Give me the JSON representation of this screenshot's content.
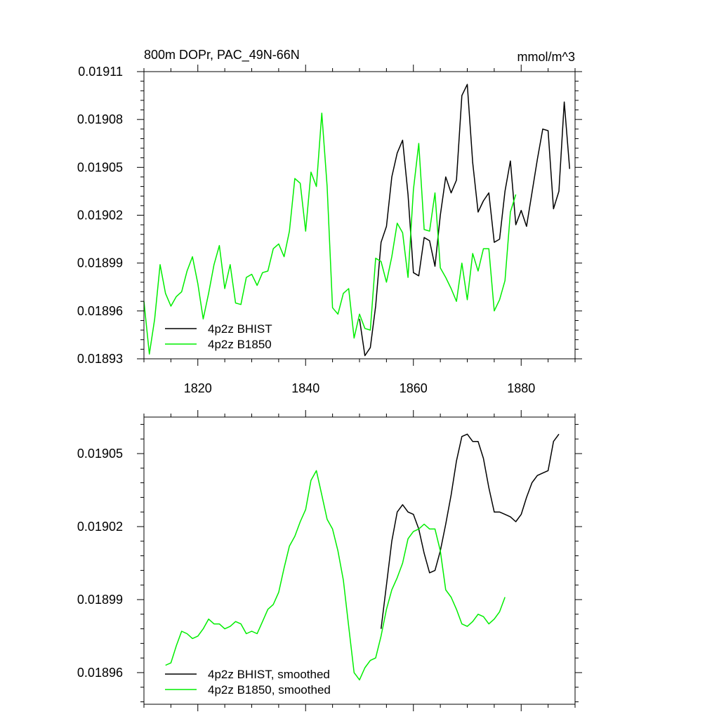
{
  "colors": {
    "bhist": "#000000",
    "b1850": "#00ee00",
    "axis": "#000000",
    "background": "#ffffff"
  },
  "chart_data": [
    {
      "type": "line",
      "title": "800m DOPr, PAC_49N-66N",
      "units": "mmol/m^3",
      "xlabel": "",
      "ylabel": "",
      "xlim": [
        1810,
        1890
      ],
      "ylim": [
        0.01893,
        0.01911
      ],
      "xticks": [
        1820,
        1840,
        1860,
        1880
      ],
      "xtick_labels": [
        "1820",
        "1840",
        "1860",
        "1880"
      ],
      "yticks": [
        0.01893,
        0.01896,
        0.01899,
        0.01902,
        0.01905,
        0.01908,
        0.01911
      ],
      "ytick_labels": [
        "0.01893",
        "0.01896",
        "0.01899",
        "0.01902",
        "0.01905",
        "0.01908",
        "0.01911"
      ],
      "grid": false,
      "legend_position": "bottom-left",
      "series": [
        {
          "name": "4p2z BHIST",
          "color": "#000000",
          "x": [
            1850,
            1851,
            1852,
            1853,
            1854,
            1855,
            1856,
            1857,
            1858,
            1859,
            1860,
            1861,
            1862,
            1863,
            1864,
            1865,
            1866,
            1867,
            1868,
            1869,
            1870,
            1871,
            1872,
            1873,
            1874,
            1875,
            1876,
            1877,
            1878,
            1879,
            1880,
            1881,
            1882,
            1883,
            1884,
            1885,
            1886,
            1887,
            1888,
            1889
          ],
          "y": [
            0.018955,
            0.018932,
            0.018937,
            0.018963,
            0.019003,
            0.019013,
            0.019044,
            0.019059,
            0.019067,
            0.019033,
            0.018984,
            0.018982,
            0.019006,
            0.019004,
            0.018988,
            0.01902,
            0.019044,
            0.019034,
            0.019042,
            0.019095,
            0.019102,
            0.019053,
            0.019022,
            0.019029,
            0.019034,
            0.019003,
            0.019005,
            0.019035,
            0.019054,
            0.019014,
            0.019023,
            0.019013,
            0.019034,
            0.019055,
            0.019074,
            0.019073,
            0.019024,
            0.019035,
            0.019091,
            0.019049
          ]
        },
        {
          "name": "4p2z B1850",
          "color": "#00ee00",
          "x": [
            1810,
            1811,
            1812,
            1813,
            1814,
            1815,
            1816,
            1817,
            1818,
            1819,
            1820,
            1821,
            1822,
            1823,
            1824,
            1825,
            1826,
            1827,
            1828,
            1829,
            1830,
            1831,
            1832,
            1833,
            1834,
            1835,
            1836,
            1837,
            1838,
            1839,
            1840,
            1841,
            1842,
            1843,
            1844,
            1845,
            1846,
            1847,
            1848,
            1849,
            1850,
            1851,
            1852,
            1853,
            1854,
            1855,
            1856,
            1857,
            1858,
            1859,
            1860,
            1861,
            1862,
            1863,
            1864,
            1865,
            1866,
            1867,
            1868,
            1869,
            1870,
            1871,
            1872,
            1873,
            1874,
            1875,
            1876,
            1877,
            1878,
            1879
          ],
          "y": [
            0.018966,
            0.018933,
            0.018955,
            0.018989,
            0.018971,
            0.018963,
            0.018969,
            0.018972,
            0.018985,
            0.018994,
            0.018977,
            0.018955,
            0.018971,
            0.018989,
            0.019001,
            0.018974,
            0.018989,
            0.018965,
            0.018964,
            0.018981,
            0.018983,
            0.018976,
            0.018984,
            0.018985,
            0.018999,
            0.019002,
            0.018994,
            0.01901,
            0.019043,
            0.01904,
            0.01901,
            0.019047,
            0.019038,
            0.019084,
            0.019038,
            0.018962,
            0.018958,
            0.018971,
            0.018974,
            0.018943,
            0.018958,
            0.018949,
            0.018948,
            0.018993,
            0.018991,
            0.018978,
            0.018994,
            0.019015,
            0.019009,
            0.018981,
            0.019036,
            0.019065,
            0.019011,
            0.01901,
            0.019034,
            0.018987,
            0.018981,
            0.018974,
            0.018966,
            0.01899,
            0.018967,
            0.018996,
            0.018985,
            0.018999,
            0.018999,
            0.01896,
            0.018967,
            0.018979,
            0.019022,
            0.019033
          ]
        }
      ]
    },
    {
      "type": "line",
      "title": "",
      "xlabel": "",
      "ylabel": "",
      "xlim": [
        1810,
        1890
      ],
      "ylim": [
        0.018947,
        0.019065
      ],
      "xticks": [
        1820,
        1840,
        1860,
        1880
      ],
      "yticks": [
        0.01896,
        0.01899,
        0.01902,
        0.01905
      ],
      "ytick_labels": [
        "0.01896",
        "0.01899",
        "0.01902",
        "0.01905"
      ],
      "grid": false,
      "legend_position": "bottom-left",
      "series": [
        {
          "name": "4p2z BHIST, smoothed",
          "color": "#000000",
          "x": [
            1854,
            1855,
            1856,
            1857,
            1858,
            1859,
            1860,
            1861,
            1862,
            1863,
            1864,
            1865,
            1866,
            1867,
            1868,
            1869,
            1870,
            1871,
            1872,
            1873,
            1874,
            1875,
            1876,
            1877,
            1878,
            1879,
            1880,
            1881,
            1882,
            1883,
            1884,
            1885,
            1886,
            1887
          ],
          "y": [
            0.018978,
            0.018996,
            0.019014,
            0.019026,
            0.019029,
            0.019026,
            0.019025,
            0.019019,
            0.019009,
            0.019001,
            0.019002,
            0.01901,
            0.019021,
            0.019033,
            0.019047,
            0.019057,
            0.019058,
            0.019055,
            0.019055,
            0.019048,
            0.019036,
            0.019026,
            0.019026,
            0.019025,
            0.019024,
            0.019022,
            0.019025,
            0.019032,
            0.019038,
            0.019041,
            0.019042,
            0.019043,
            0.019055,
            0.019058
          ]
        },
        {
          "name": "4p2z B1850, smoothed",
          "color": "#00ee00",
          "x": [
            1814,
            1815,
            1816,
            1817,
            1818,
            1819,
            1820,
            1821,
            1822,
            1823,
            1824,
            1825,
            1826,
            1827,
            1828,
            1829,
            1830,
            1831,
            1832,
            1833,
            1834,
            1835,
            1836,
            1837,
            1838,
            1839,
            1840,
            1841,
            1842,
            1843,
            1844,
            1845,
            1846,
            1847,
            1848,
            1849,
            1850,
            1851,
            1852,
            1853,
            1854,
            1855,
            1856,
            1857,
            1858,
            1859,
            1860,
            1861,
            1862,
            1863,
            1864,
            1865,
            1866,
            1867,
            1868,
            1869,
            1870,
            1871,
            1872,
            1873,
            1874,
            1875,
            1876,
            1877
          ],
          "y": [
            0.018963,
            0.018964,
            0.018971,
            0.018977,
            0.018976,
            0.018974,
            0.018975,
            0.018978,
            0.018982,
            0.01898,
            0.01898,
            0.018978,
            0.018979,
            0.018981,
            0.01898,
            0.018976,
            0.018977,
            0.018976,
            0.018981,
            0.018986,
            0.018988,
            0.018993,
            0.019003,
            0.019012,
            0.019016,
            0.019022,
            0.019027,
            0.019039,
            0.019043,
            0.019033,
            0.019023,
            0.019019,
            0.01901,
            0.018998,
            0.018979,
            0.01896,
            0.018957,
            0.018962,
            0.018965,
            0.018966,
            0.018975,
            0.018986,
            0.018994,
            0.018999,
            0.019005,
            0.019015,
            0.019018,
            0.019019,
            0.019021,
            0.019019,
            0.019019,
            0.01901,
            0.018994,
            0.018991,
            0.018986,
            0.01898,
            0.018979,
            0.018981,
            0.018984,
            0.018983,
            0.01898,
            0.018982,
            0.018985,
            0.018991
          ]
        }
      ]
    }
  ]
}
